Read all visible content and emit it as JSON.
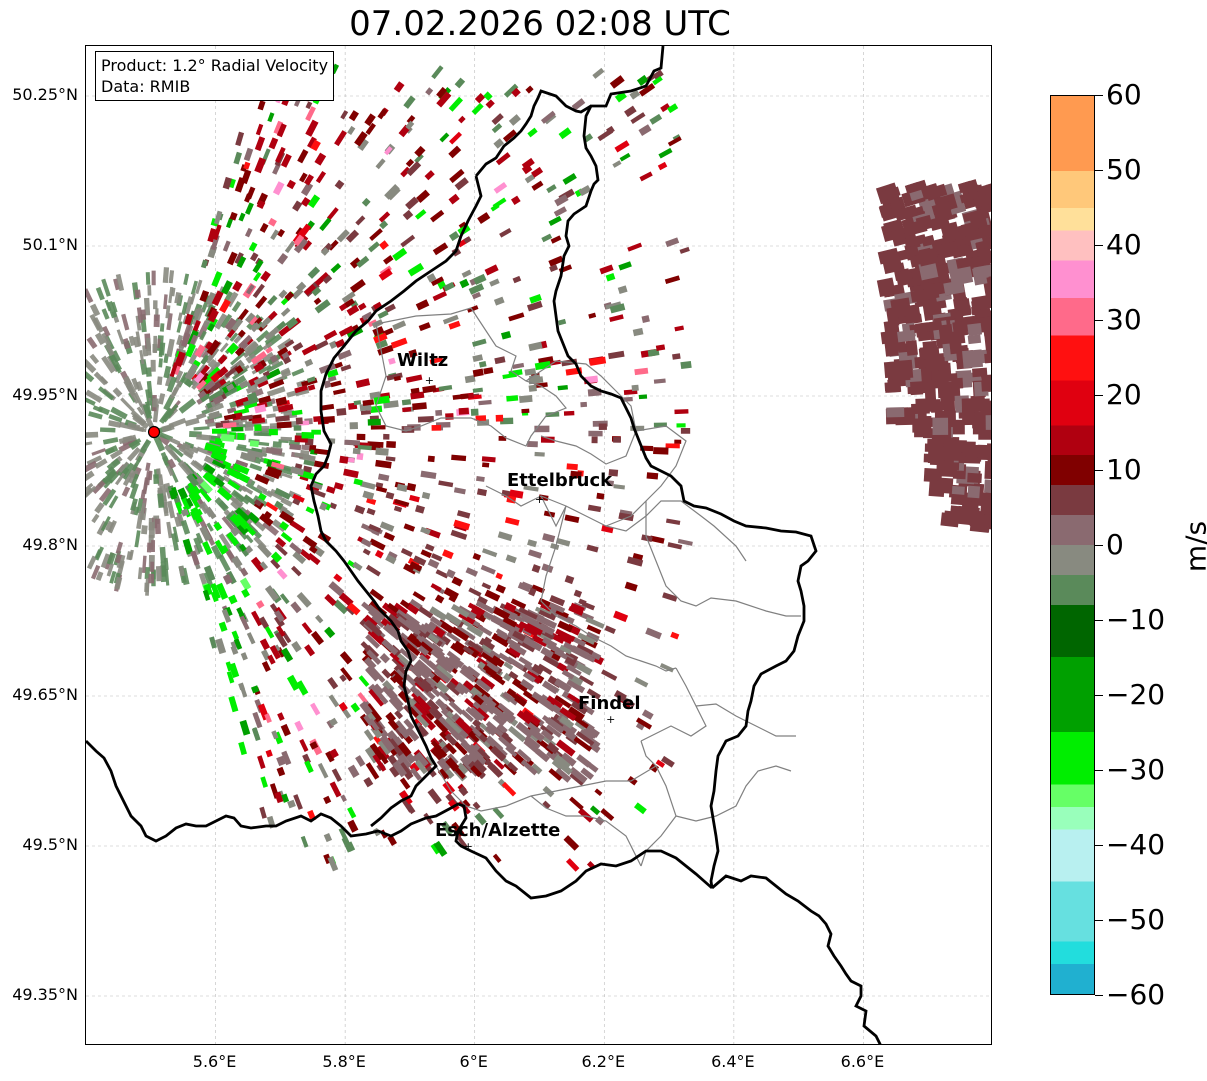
{
  "title": "07.02.2026 02:08 UTC",
  "info": {
    "product": "Product: 1.2° Radial Velocity",
    "data": "Data: RMIB"
  },
  "lat_labels": [
    "50.25°N",
    "50.1°N",
    "49.95°N",
    "49.8°N",
    "49.65°N",
    "49.5°N",
    "49.35°N"
  ],
  "lon_labels": [
    "5.6°E",
    "5.8°E",
    "6°E",
    "6.2°E",
    "6.4°E",
    "6.6°E"
  ],
  "cities": [
    {
      "name": "Wiltz",
      "lon": 5.93,
      "lat": 49.966
    },
    {
      "name": "Ettelbruck",
      "lon": 6.1,
      "lat": 49.847
    },
    {
      "name": "Findel",
      "lon": 6.21,
      "lat": 49.627
    },
    {
      "name": "Esch/Alzette",
      "lon": 5.99,
      "lat": 49.5
    }
  ],
  "radar_site": {
    "lon": 5.505,
    "lat": 49.914
  },
  "map_extent": {
    "lon_min": 5.4,
    "lon_max": 6.8,
    "lat_min": 49.3,
    "lat_max": 50.3
  },
  "colorbar": {
    "unit": "m/s",
    "min": -60,
    "max": 60,
    "tick_labels": [
      "60",
      "50",
      "40",
      "30",
      "20",
      "10",
      "0",
      "−10",
      "−20",
      "−30",
      "−40",
      "−50",
      "−60"
    ],
    "stops": [
      {
        "v": 60,
        "color": "#ff9a50"
      },
      {
        "v": 50,
        "color": "#ffc87a"
      },
      {
        "v": 45,
        "color": "#ffe09a"
      },
      {
        "v": 42,
        "color": "#ffc0c0"
      },
      {
        "v": 38,
        "color": "#ff90d0"
      },
      {
        "v": 33,
        "color": "#ff6a8a"
      },
      {
        "v": 28,
        "color": "#ff1010"
      },
      {
        "v": 22,
        "color": "#e00010"
      },
      {
        "v": 16,
        "color": "#b00010"
      },
      {
        "v": 12,
        "color": "#800000"
      },
      {
        "v": 8,
        "color": "#7a3a40"
      },
      {
        "v": 4,
        "color": "#8a6a70"
      },
      {
        "v": 0,
        "color": "#888a80"
      },
      {
        "v": -4,
        "color": "#5a8a5a"
      },
      {
        "v": -8,
        "color": "#006600"
      },
      {
        "v": -15,
        "color": "#00a000"
      },
      {
        "v": -25,
        "color": "#00ee00"
      },
      {
        "v": -32,
        "color": "#66ff66"
      },
      {
        "v": -35,
        "color": "#99ffbb"
      },
      {
        "v": -38,
        "color": "#b8f0f0"
      },
      {
        "v": -45,
        "color": "#66e0e0"
      },
      {
        "v": -53,
        "color": "#22dddd"
      },
      {
        "v": -56,
        "color": "#20b0d0"
      },
      {
        "v": -60,
        "color": "#2080c0"
      }
    ]
  },
  "colors": {
    "border": "#000000",
    "canton": "#808080",
    "grid": "#bbbbbb",
    "radar_dot": "#ff0000"
  }
}
